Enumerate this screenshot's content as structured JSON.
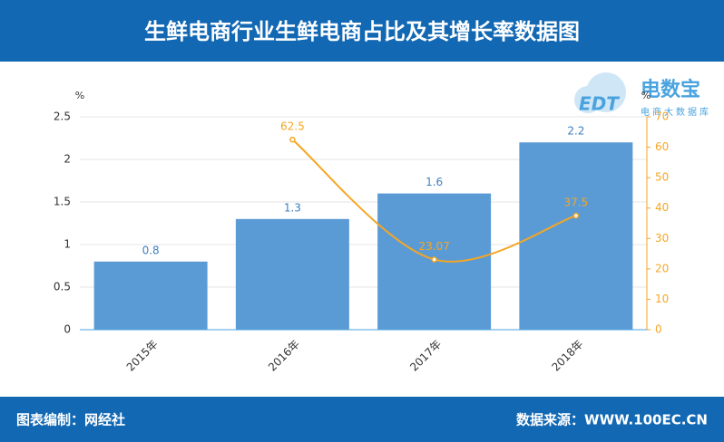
{
  "header": {
    "title": "生鲜电商行业生鲜电商占比及其增长率数据图"
  },
  "logo": {
    "mark": "EDT",
    "name": "电数宝",
    "subtitle": "电商大数据库"
  },
  "footer": {
    "left": "图表编制：网经社",
    "right": "数据来源：WWW.100EC.CN"
  },
  "chart_data": {
    "type": "combo",
    "categories": [
      "2015年",
      "2016年",
      "2017年",
      "2018年"
    ],
    "series": [
      {
        "type": "bar",
        "color": "#5b9bd5",
        "values": [
          0.8,
          1.3,
          1.6,
          2.2
        ]
      },
      {
        "type": "line",
        "axis": "y2",
        "color": "#f5a623",
        "values": [
          null,
          62.5,
          23.07,
          37.5
        ]
      }
    ],
    "yunit": "%",
    "y2unit": "%",
    "ylim": [
      0,
      2.5
    ],
    "yticks": [
      0,
      0.5,
      1,
      1.5,
      2,
      2.5
    ],
    "y2lim": [
      0,
      70
    ],
    "y2ticks": [
      0,
      10,
      20,
      30,
      40,
      50,
      60,
      70
    ],
    "grid": true
  }
}
